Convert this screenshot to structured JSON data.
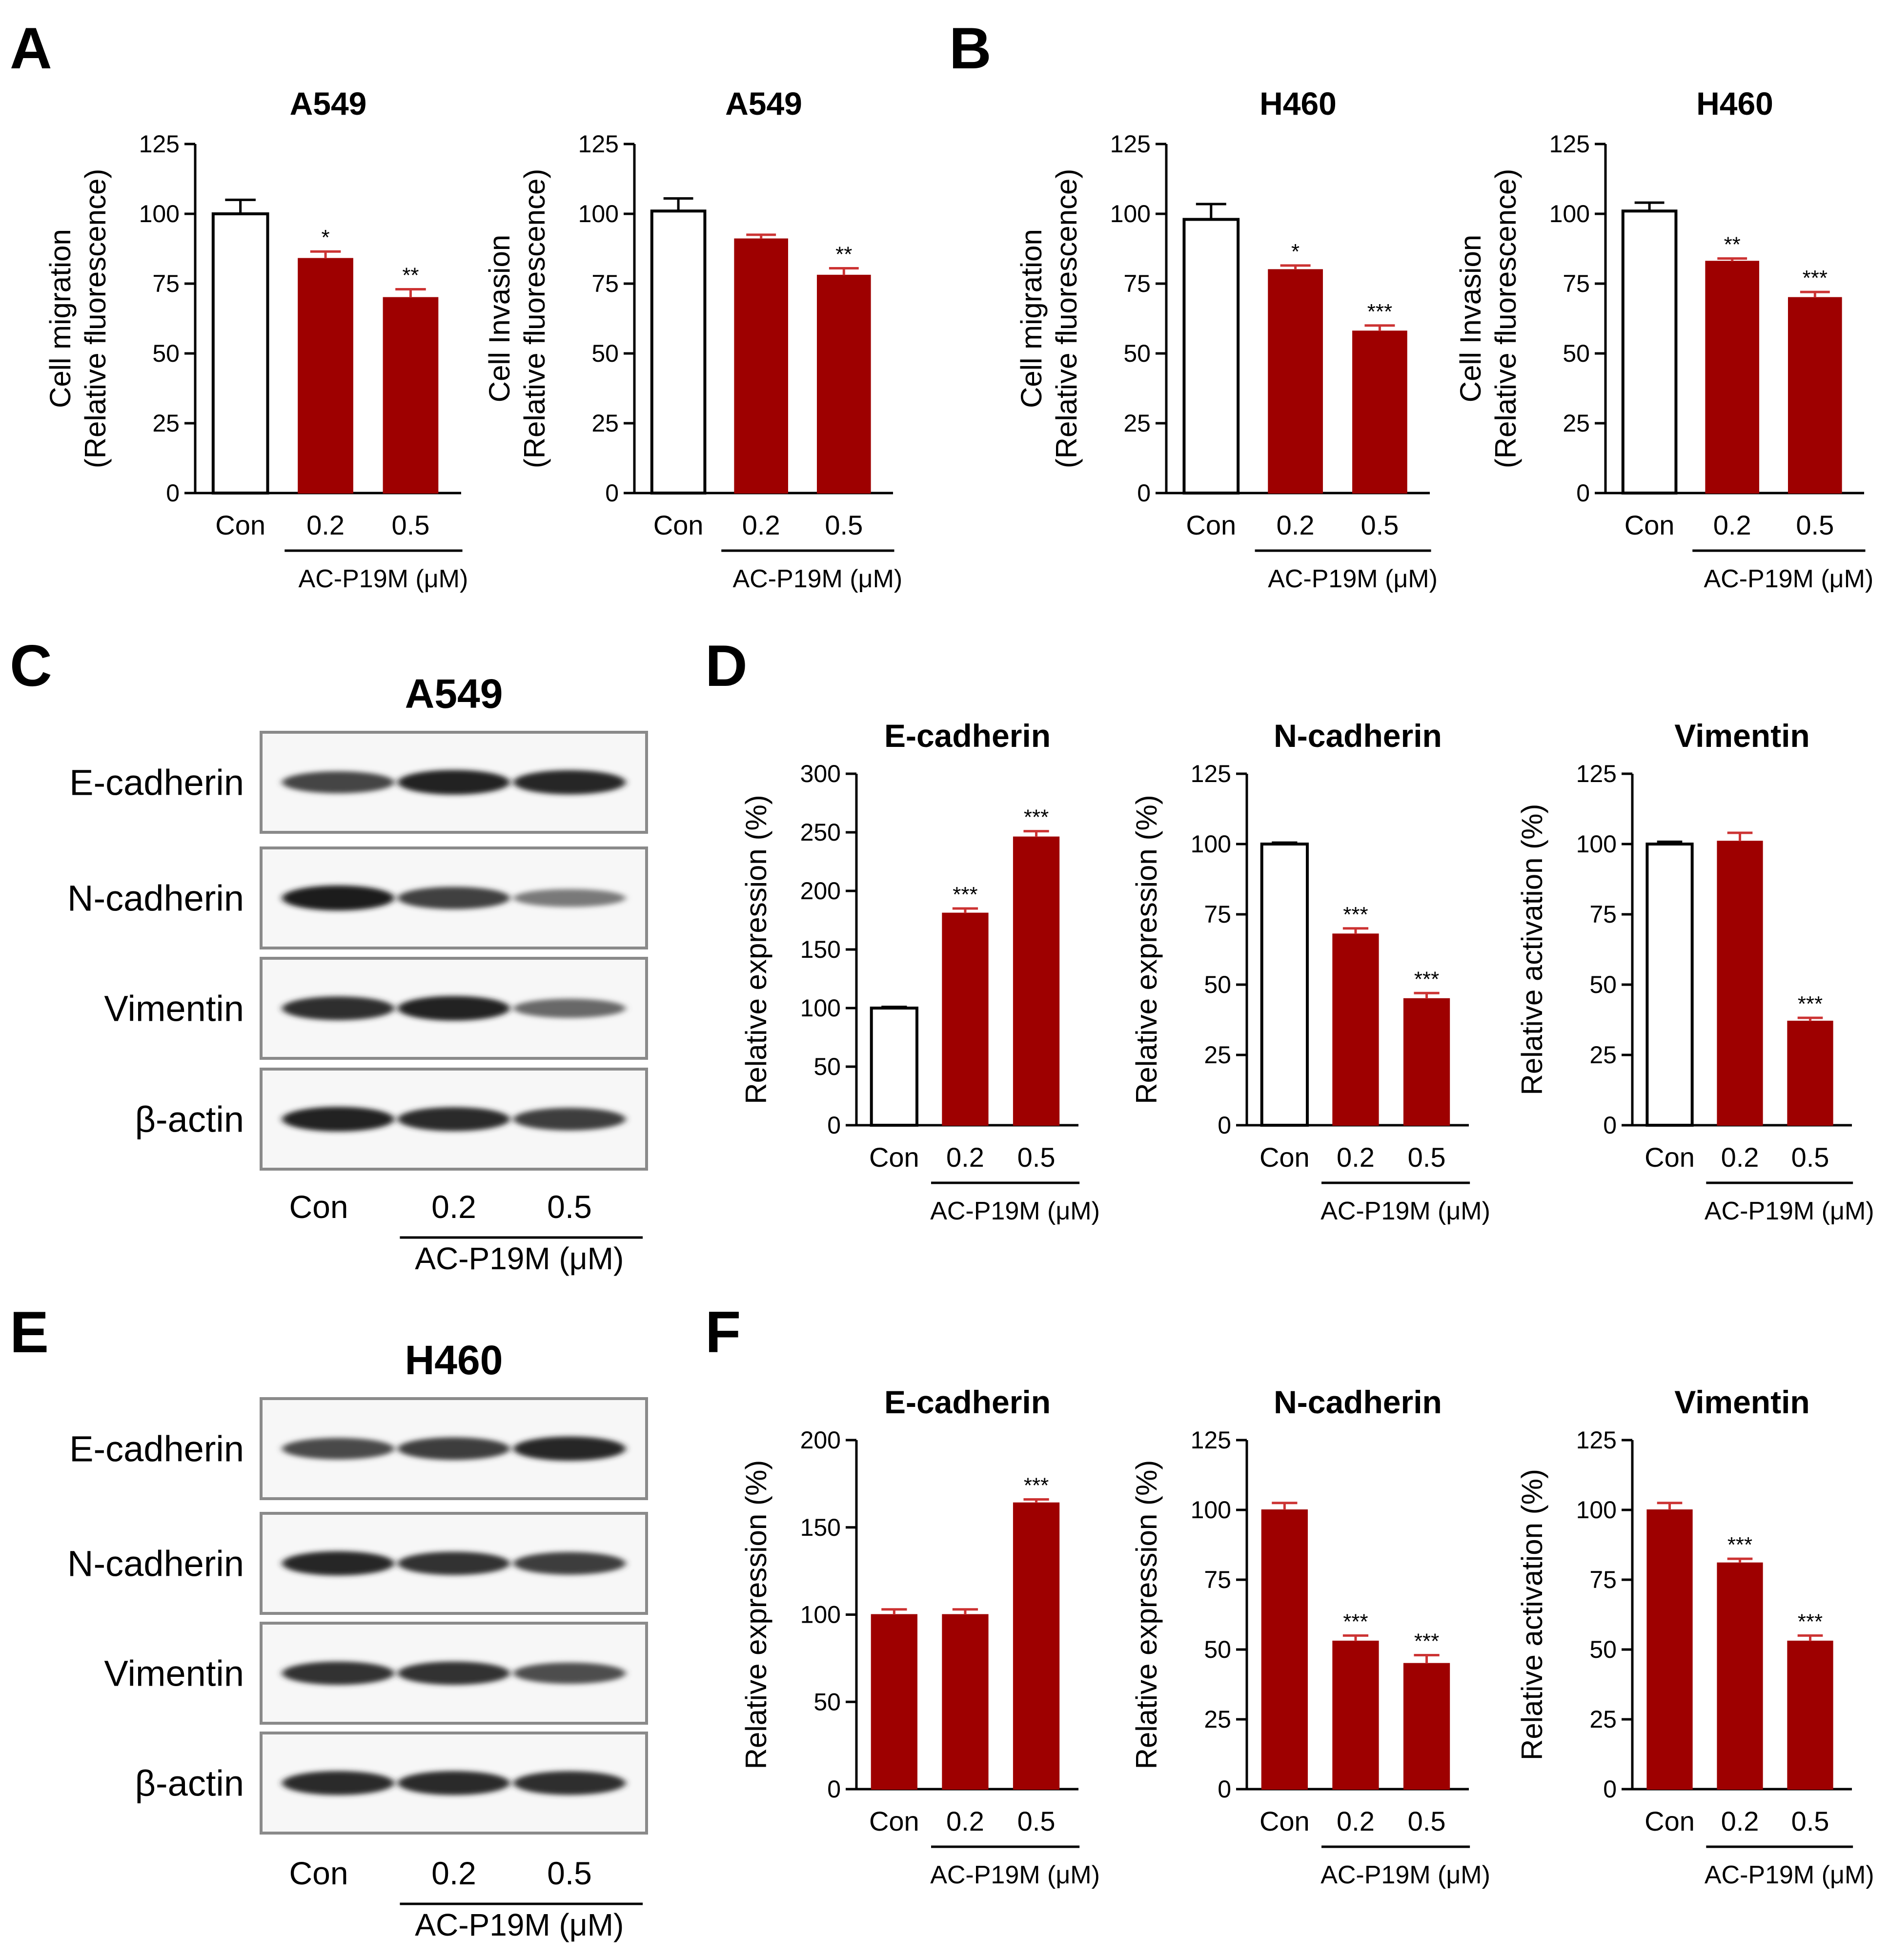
{
  "panel_letters": [
    "A",
    "B",
    "C",
    "D",
    "E",
    "F"
  ],
  "colors": {
    "treated_bar": "#9e0000",
    "control_open": "#ffffff",
    "axis": "#000000",
    "error_treated": "#cc3333"
  },
  "blots": [
    {
      "panel": "C",
      "title": "A549",
      "proteins": [
        {
          "name": "E-cadherin",
          "intensity": [
            0.75,
            0.95,
            0.92
          ]
        },
        {
          "name": "N-cadherin",
          "intensity": [
            0.98,
            0.78,
            0.45
          ]
        },
        {
          "name": "Vimentin",
          "intensity": [
            0.88,
            0.95,
            0.55
          ]
        },
        {
          "name": "β-actin",
          "intensity": [
            0.95,
            0.9,
            0.8
          ]
        }
      ],
      "lanes": [
        "Con",
        "0.2",
        "0.5"
      ],
      "treatment": "AC-P19M (μM)"
    },
    {
      "panel": "E",
      "title": "H460",
      "proteins": [
        {
          "name": "E-cadherin",
          "intensity": [
            0.72,
            0.8,
            0.92
          ]
        },
        {
          "name": "N-cadherin",
          "intensity": [
            0.92,
            0.85,
            0.8
          ]
        },
        {
          "name": "Vimentin",
          "intensity": [
            0.85,
            0.85,
            0.7
          ]
        },
        {
          "name": "β-actin",
          "intensity": [
            0.9,
            0.9,
            0.88
          ]
        }
      ],
      "lanes": [
        "Con",
        "0.2",
        "0.5"
      ],
      "treatment": "AC-P19M (μM)"
    }
  ],
  "chart_data": [
    {
      "type": "bar",
      "panel": "A",
      "title": "A549",
      "ylabel": [
        "Cell migration",
        "(Relative fluorescence)"
      ],
      "categories": [
        "Con",
        "0.2",
        "0.5"
      ],
      "treatment_label": "AC-P19M (μM)",
      "values": [
        100,
        84,
        70
      ],
      "errors": [
        5,
        2.5,
        3
      ],
      "significance": [
        "",
        "*",
        "**"
      ],
      "ylim": [
        0,
        125
      ],
      "yticks": [
        0,
        25,
        50,
        75,
        100,
        125
      ],
      "control_open": true
    },
    {
      "type": "bar",
      "panel": "A",
      "title": "A549",
      "ylabel": [
        "Cell Invasion",
        "(Relative fluorescence)"
      ],
      "categories": [
        "Con",
        "0.2",
        "0.5"
      ],
      "treatment_label": "AC-P19M (μM)",
      "values": [
        101,
        91,
        78
      ],
      "errors": [
        4.5,
        1.5,
        2.5
      ],
      "significance": [
        "",
        "",
        "**"
      ],
      "ylim": [
        0,
        125
      ],
      "yticks": [
        0,
        25,
        50,
        75,
        100,
        125
      ],
      "control_open": true
    },
    {
      "type": "bar",
      "panel": "B",
      "title": "H460",
      "ylabel": [
        "Cell migration",
        "(Relative fluorescence)"
      ],
      "categories": [
        "Con",
        "0.2",
        "0.5"
      ],
      "treatment_label": "AC-P19M (μM)",
      "values": [
        98,
        80,
        58
      ],
      "errors": [
        5.5,
        1.5,
        2
      ],
      "significance": [
        "",
        "*",
        "***"
      ],
      "ylim": [
        0,
        125
      ],
      "yticks": [
        0,
        25,
        50,
        75,
        100,
        125
      ],
      "control_open": true
    },
    {
      "type": "bar",
      "panel": "B",
      "title": "H460",
      "ylabel": [
        "Cell Invasion",
        "(Relative fluorescence)"
      ],
      "categories": [
        "Con",
        "0.2",
        "0.5"
      ],
      "treatment_label": "AC-P19M (μM)",
      "values": [
        101,
        83,
        70
      ],
      "errors": [
        3,
        1,
        2
      ],
      "significance": [
        "",
        "**",
        "***"
      ],
      "ylim": [
        0,
        125
      ],
      "yticks": [
        0,
        25,
        50,
        75,
        100,
        125
      ],
      "control_open": true
    },
    {
      "type": "bar",
      "panel": "D",
      "title": "E-cadherin",
      "ylabel": [
        "Relative expression (%)"
      ],
      "categories": [
        "Con",
        "0.2",
        "0.5"
      ],
      "treatment_label": "AC-P19M (μM)",
      "values": [
        100,
        181,
        246
      ],
      "errors": [
        1,
        4,
        5
      ],
      "significance": [
        "",
        "***",
        "***"
      ],
      "ylim": [
        0,
        300
      ],
      "yticks": [
        0,
        50,
        100,
        150,
        200,
        250,
        300
      ],
      "control_open": true
    },
    {
      "type": "bar",
      "panel": "D",
      "title": "N-cadherin",
      "ylabel": [
        "Relative expression (%)"
      ],
      "categories": [
        "Con",
        "0.2",
        "0.5"
      ],
      "treatment_label": "AC-P19M (μM)",
      "values": [
        100,
        68,
        45
      ],
      "errors": [
        0.5,
        2,
        2
      ],
      "significance": [
        "",
        "***",
        "***"
      ],
      "ylim": [
        0,
        125
      ],
      "yticks": [
        0,
        25,
        50,
        75,
        100,
        125
      ],
      "control_open": true
    },
    {
      "type": "bar",
      "panel": "D",
      "title": "Vimentin",
      "ylabel": [
        "Relative activation (%)"
      ],
      "categories": [
        "Con",
        "0.2",
        "0.5"
      ],
      "treatment_label": "AC-P19M (μM)",
      "values": [
        100,
        101,
        37
      ],
      "errors": [
        0.8,
        3,
        1.2
      ],
      "significance": [
        "",
        "",
        "***"
      ],
      "ylim": [
        0,
        125
      ],
      "yticks": [
        0,
        25,
        50,
        75,
        100,
        125
      ],
      "control_open": true
    },
    {
      "type": "bar",
      "panel": "F",
      "title": "E-cadherin",
      "ylabel": [
        "Relative expression (%)"
      ],
      "categories": [
        "Con",
        "0.2",
        "0.5"
      ],
      "treatment_label": "AC-P19M (μM)",
      "values": [
        100,
        100,
        164
      ],
      "errors": [
        3,
        3,
        2
      ],
      "significance": [
        "",
        "",
        "***"
      ],
      "ylim": [
        0,
        200
      ],
      "yticks": [
        0,
        50,
        100,
        150,
        200
      ],
      "control_open": false
    },
    {
      "type": "bar",
      "panel": "F",
      "title": "N-cadherin",
      "ylabel": [
        "Relative expression (%)"
      ],
      "categories": [
        "Con",
        "0.2",
        "0.5"
      ],
      "treatment_label": "AC-P19M (μM)",
      "values": [
        100,
        53,
        45
      ],
      "errors": [
        2.5,
        2,
        3
      ],
      "significance": [
        "",
        "***",
        "***"
      ],
      "ylim": [
        0,
        125
      ],
      "yticks": [
        0,
        25,
        50,
        75,
        100,
        125
      ],
      "control_open": false
    },
    {
      "type": "bar",
      "panel": "F",
      "title": "Vimentin",
      "ylabel": [
        "Relative activation (%)"
      ],
      "categories": [
        "Con",
        "0.2",
        "0.5"
      ],
      "treatment_label": "AC-P19M (μM)",
      "values": [
        100,
        81,
        53
      ],
      "errors": [
        2.5,
        1.5,
        2
      ],
      "significance": [
        "",
        "***",
        "***"
      ],
      "ylim": [
        0,
        125
      ],
      "yticks": [
        0,
        25,
        50,
        75,
        100,
        125
      ],
      "control_open": false
    }
  ]
}
